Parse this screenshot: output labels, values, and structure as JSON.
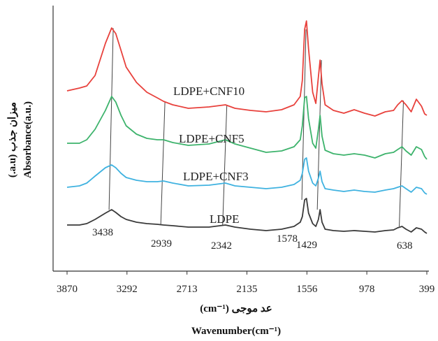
{
  "chart_data": {
    "type": "line",
    "title": "",
    "xlabel_fa": "عد موجی (cm⁻¹)",
    "xlabel_en": "Wavenumber(cm⁻¹)",
    "ylabel_fa": "میزان جذب (a.u.)",
    "ylabel_en": "Absorbance(a.u.)",
    "x_reversed": true,
    "xlim": [
      3870,
      399
    ],
    "x_ticks": [
      "3870",
      "3292",
      "2713",
      "2135",
      "1556",
      "978",
      "399"
    ],
    "grid": false,
    "legend": "inline labels",
    "peak_labels": [
      {
        "x": 3438,
        "text": "3438"
      },
      {
        "x": 2939,
        "text": "2939"
      },
      {
        "x": 2342,
        "text": "2342"
      },
      {
        "x": 1578,
        "text": "1578"
      },
      {
        "x": 1429,
        "text": "1429"
      },
      {
        "x": 638,
        "text": "638"
      }
    ],
    "series": [
      {
        "name": "LDPE+CNF10",
        "color": "#e8413c",
        "x": [
          3870,
          3750,
          3680,
          3600,
          3500,
          3440,
          3400,
          3350,
          3300,
          3200,
          3100,
          3000,
          2939,
          2850,
          2700,
          2500,
          2342,
          2250,
          2100,
          1950,
          1800,
          1680,
          1620,
          1600,
          1578,
          1560,
          1540,
          1500,
          1470,
          1445,
          1429,
          1410,
          1380,
          1300,
          1200,
          1100,
          1000,
          900,
          800,
          720,
          680,
          638,
          600,
          550,
          500,
          450,
          420,
          399
        ],
        "y": [
          130,
          126,
          123,
          108,
          62,
          40,
          48,
          72,
          96,
          118,
          132,
          140,
          145,
          150,
          155,
          153,
          150,
          155,
          158,
          160,
          157,
          150,
          138,
          115,
          42,
          30,
          70,
          132,
          148,
          110,
          86,
          120,
          150,
          158,
          162,
          157,
          162,
          166,
          160,
          158,
          150,
          144,
          150,
          160,
          142,
          152,
          163,
          165
        ]
      },
      {
        "name": "LDPE+CNF5",
        "color": "#3db36c",
        "x": [
          3870,
          3750,
          3680,
          3600,
          3500,
          3440,
          3400,
          3350,
          3300,
          3200,
          3100,
          3000,
          2939,
          2850,
          2700,
          2500,
          2342,
          2250,
          2100,
          1950,
          1800,
          1680,
          1620,
          1600,
          1578,
          1560,
          1540,
          1500,
          1470,
          1445,
          1429,
          1410,
          1380,
          1300,
          1200,
          1100,
          1000,
          900,
          800,
          720,
          680,
          638,
          600,
          550,
          500,
          450,
          420,
          399
        ],
        "y": [
          205,
          205,
          200,
          185,
          158,
          138,
          146,
          165,
          180,
          192,
          198,
          200,
          200,
          204,
          208,
          206,
          200,
          206,
          212,
          218,
          216,
          210,
          200,
          180,
          140,
          138,
          170,
          205,
          212,
          185,
          165,
          195,
          215,
          220,
          222,
          220,
          222,
          226,
          220,
          218,
          214,
          210,
          216,
          222,
          210,
          214,
          224,
          228
        ]
      },
      {
        "name": "LDPE+CNF3",
        "color": "#3fb2e0",
        "x": [
          3870,
          3750,
          3680,
          3600,
          3500,
          3440,
          3400,
          3350,
          3300,
          3200,
          3100,
          3000,
          2939,
          2850,
          2700,
          2500,
          2342,
          2250,
          2100,
          1950,
          1800,
          1680,
          1620,
          1600,
          1578,
          1560,
          1540,
          1500,
          1470,
          1445,
          1429,
          1410,
          1380,
          1300,
          1200,
          1100,
          1000,
          900,
          800,
          720,
          680,
          638,
          600,
          550,
          500,
          450,
          420,
          399
        ],
        "y": [
          268,
          266,
          262,
          252,
          240,
          236,
          240,
          248,
          254,
          258,
          260,
          260,
          259,
          262,
          266,
          265,
          262,
          266,
          268,
          270,
          268,
          264,
          258,
          248,
          228,
          226,
          245,
          262,
          266,
          255,
          245,
          260,
          270,
          272,
          274,
          272,
          274,
          275,
          272,
          270,
          268,
          266,
          270,
          275,
          268,
          270,
          276,
          278
        ]
      },
      {
        "name": "LDPE",
        "color": "#3a3a3a",
        "x": [
          3870,
          3750,
          3680,
          3600,
          3500,
          3440,
          3400,
          3350,
          3300,
          3200,
          3100,
          3000,
          2939,
          2850,
          2700,
          2500,
          2342,
          2250,
          2100,
          1950,
          1800,
          1680,
          1620,
          1600,
          1578,
          1560,
          1540,
          1500,
          1470,
          1445,
          1429,
          1410,
          1380,
          1300,
          1200,
          1100,
          1000,
          900,
          800,
          720,
          680,
          638,
          600,
          550,
          500,
          450,
          420,
          399
        ],
        "y": [
          322,
          322,
          320,
          314,
          305,
          300,
          304,
          310,
          314,
          318,
          320,
          321,
          322,
          323,
          325,
          325,
          322,
          325,
          328,
          330,
          328,
          324,
          318,
          310,
          286,
          284,
          305,
          320,
          324,
          314,
          300,
          318,
          328,
          330,
          331,
          330,
          331,
          332,
          330,
          329,
          326,
          324,
          328,
          332,
          326,
          328,
          332,
          334
        ]
      }
    ]
  }
}
